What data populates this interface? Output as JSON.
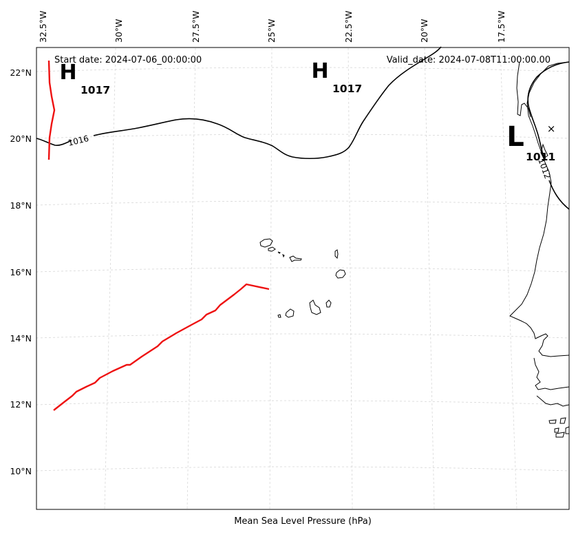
{
  "map": {
    "start_date": "Start date: 2024-07-06_00:00:00",
    "valid_date": "Valid_date: 2024-07-08T11:00:00.00",
    "caption": "Mean Sea Level Pressure (hPa)",
    "lon_labels": [
      "32.5°W",
      "30°W",
      "27.5°W",
      "25°W",
      "22.5°W",
      "20°W",
      "17.5°W"
    ],
    "lat_labels": [
      "22°N",
      "20°N",
      "18°N",
      "16°N",
      "14°N",
      "12°N",
      "10°N"
    ],
    "pressure_centers": [
      {
        "symbol": "H",
        "value": "1017"
      },
      {
        "symbol": "H",
        "value": "1017"
      },
      {
        "symbol": "L",
        "value": "1011"
      }
    ],
    "contour_labels": [
      "1016",
      "1012"
    ],
    "marker_symbol": "×",
    "colors": {
      "track": "#ee1111",
      "contour": "#000000",
      "grid": "#cccccc",
      "coast": "#000000"
    }
  }
}
